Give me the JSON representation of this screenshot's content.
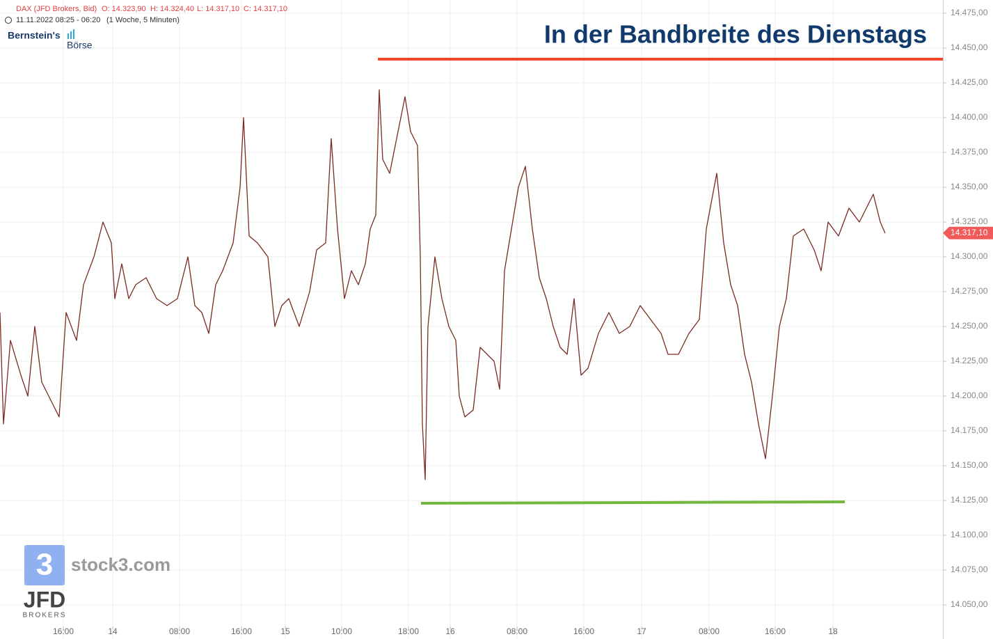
{
  "chart_data": {
    "type": "line",
    "title": "In der Bandbreite des Dienstags",
    "instrument": "DAX (JFD Brokers, Bid)",
    "ohlc": [
      "O: 14.323,90",
      "H: 14.324,40",
      "L: 14.317,10",
      "C: 14.317,10"
    ],
    "period": "11.11.2022 08:25 - 06:20",
    "interval": "(1 Woche, 5 Minuten)",
    "logo": [
      "Bernstein's",
      "Börse"
    ],
    "watermark": {
      "icon": "3",
      "site": "stock3.com",
      "broker": "JFD",
      "broker_sub": "BROKERS"
    },
    "color": "#7a2a22",
    "grid": true,
    "x": [
      0,
      1,
      3,
      6,
      8,
      10,
      12,
      15,
      17,
      19,
      22,
      24,
      27,
      29.6,
      32,
      33,
      35,
      37,
      39,
      42,
      45,
      48,
      51,
      54,
      56,
      58,
      60,
      62,
      64,
      67,
      69,
      70,
      71.6,
      74,
      77,
      79,
      81,
      83,
      86,
      89,
      91,
      93.6,
      95.2,
      97,
      99,
      101,
      103,
      105,
      106.4,
      108,
      109,
      110,
      112,
      114,
      116.4,
      118,
      120,
      120.8,
      121.4,
      122.2,
      123,
      125,
      127,
      129,
      131,
      132,
      133.6,
      136,
      138,
      140,
      142,
      143.6,
      145,
      147,
      149,
      151,
      153,
      155,
      157,
      159,
      161,
      163,
      165,
      167,
      169,
      172,
      175,
      178,
      181,
      184,
      187,
      190,
      192,
      195,
      198,
      201,
      203,
      206,
      208,
      210,
      212,
      214,
      216,
      218,
      220,
      222,
      224,
      226,
      228,
      231,
      234,
      236,
      238,
      241,
      244,
      247,
      251,
      253,
      254.4
    ],
    "values": [
      14260,
      14180,
      14240,
      14215,
      14200,
      14250,
      14210,
      14195,
      14185,
      14260,
      14240,
      14280,
      14300,
      14325,
      14310,
      14270,
      14295,
      14270,
      14280,
      14285,
      14270,
      14265,
      14270,
      14300,
      14265,
      14260,
      14245,
      14280,
      14290,
      14310,
      14350,
      14400,
      14315,
      14310,
      14300,
      14250,
      14265,
      14270,
      14250,
      14275,
      14305,
      14310,
      14385,
      14320,
      14270,
      14290,
      14280,
      14295,
      14320,
      14330,
      14420,
      14370,
      14360,
      14385,
      14415,
      14390,
      14380,
      14300,
      14180,
      14140,
      14250,
      14300,
      14270,
      14250,
      14240,
      14200,
      14185,
      14190,
      14235,
      14230,
      14225,
      14205,
      14290,
      14320,
      14350,
      14365,
      14320,
      14285,
      14270,
      14250,
      14235,
      14230,
      14270,
      14215,
      14220,
      14245,
      14260,
      14245,
      14250,
      14265,
      14255,
      14245,
      14230,
      14230,
      14245,
      14255,
      14320,
      14360,
      14310,
      14280,
      14265,
      14230,
      14210,
      14180,
      14155,
      14200,
      14250,
      14270,
      14315,
      14320,
      14305,
      14290,
      14325,
      14315,
      14335,
      14325,
      14345,
      14325,
      14317
    ],
    "last": {
      "value": 14317.1,
      "label": "14.317,10",
      "color": "#f05a5a"
    },
    "hlines": [
      {
        "x": [
          108.6,
          271
        ],
        "y": [
          14442,
          14442
        ],
        "color": "#f04a24"
      },
      {
        "x": [
          121,
          242.8
        ],
        "y": [
          14123,
          14124
        ],
        "color": "#72b83c"
      }
    ],
    "xlim": [
      0,
      271
    ],
    "ylim": [
      14025.5,
      14484.5
    ],
    "xticks": [
      {
        "value": 18.2,
        "label": "16:00"
      },
      {
        "value": 32.4,
        "label": "14"
      },
      {
        "value": 51.6,
        "label": "08:00"
      },
      {
        "value": 69.4,
        "label": "16:00"
      },
      {
        "value": 82,
        "label": "15"
      },
      {
        "value": 98.2,
        "label": "10:00"
      },
      {
        "value": 117.4,
        "label": "18:00"
      },
      {
        "value": 129.4,
        "label": "16"
      },
      {
        "value": 148.6,
        "label": "08:00"
      },
      {
        "value": 167.8,
        "label": "16:00"
      },
      {
        "value": 184.4,
        "label": "17"
      },
      {
        "value": 203.8,
        "label": "08:00"
      },
      {
        "value": 222.8,
        "label": "16:00"
      },
      {
        "value": 239.4,
        "label": "18"
      }
    ],
    "yticks": [
      {
        "value": 14050,
        "label": "14.050,00"
      },
      {
        "value": 14075,
        "label": "14.075,00"
      },
      {
        "value": 14100,
        "label": "14.100,00"
      },
      {
        "value": 14125,
        "label": "14.125,00"
      },
      {
        "value": 14150,
        "label": "14.150,00"
      },
      {
        "value": 14175,
        "label": "14.175,00"
      },
      {
        "value": 14200,
        "label": "14.200,00"
      },
      {
        "value": 14225,
        "label": "14.225,00"
      },
      {
        "value": 14250,
        "label": "14.250,00"
      },
      {
        "value": 14275,
        "label": "14.275,00"
      },
      {
        "value": 14300,
        "label": "14.300,00"
      },
      {
        "value": 14325,
        "label": "14.325,00"
      },
      {
        "value": 14350,
        "label": "14.350,00"
      },
      {
        "value": 14375,
        "label": "14.375,00"
      },
      {
        "value": 14400,
        "label": "14.400,00"
      },
      {
        "value": 14425,
        "label": "14.425,00"
      },
      {
        "value": 14450,
        "label": "14.450,00"
      },
      {
        "value": 14475,
        "label": "14.475,00"
      }
    ]
  }
}
